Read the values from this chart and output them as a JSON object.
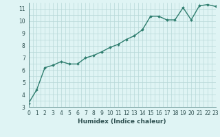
{
  "x": [
    0,
    1,
    2,
    3,
    4,
    5,
    6,
    7,
    8,
    9,
    10,
    11,
    12,
    13,
    14,
    15,
    16,
    17,
    18,
    19,
    20,
    21,
    22,
    23
  ],
  "y": [
    3.3,
    4.4,
    6.2,
    6.4,
    6.7,
    6.5,
    6.5,
    7.0,
    7.2,
    7.5,
    7.85,
    8.1,
    8.5,
    8.8,
    9.3,
    10.4,
    10.4,
    10.1,
    10.1,
    11.1,
    10.1,
    11.25,
    11.35,
    11.2
  ],
  "line_color": "#2e7d6e",
  "marker": "D",
  "marker_size": 2.0,
  "line_width": 1.0,
  "bg_color": "#dff4f4",
  "grid_color": "#b8d8d8",
  "xlabel": "Humidex (Indice chaleur)",
  "xlim": [
    0,
    23
  ],
  "ylim": [
    3,
    11.5
  ],
  "yticks": [
    3,
    4,
    5,
    6,
    7,
    8,
    9,
    10,
    11
  ],
  "xticks": [
    0,
    1,
    2,
    3,
    4,
    5,
    6,
    7,
    8,
    9,
    10,
    11,
    12,
    13,
    14,
    15,
    16,
    17,
    18,
    19,
    20,
    21,
    22,
    23
  ],
  "tick_fontsize": 5.5,
  "label_fontsize": 6.5,
  "axis_color": "#5a8a8a",
  "tick_color": "#2e5050"
}
